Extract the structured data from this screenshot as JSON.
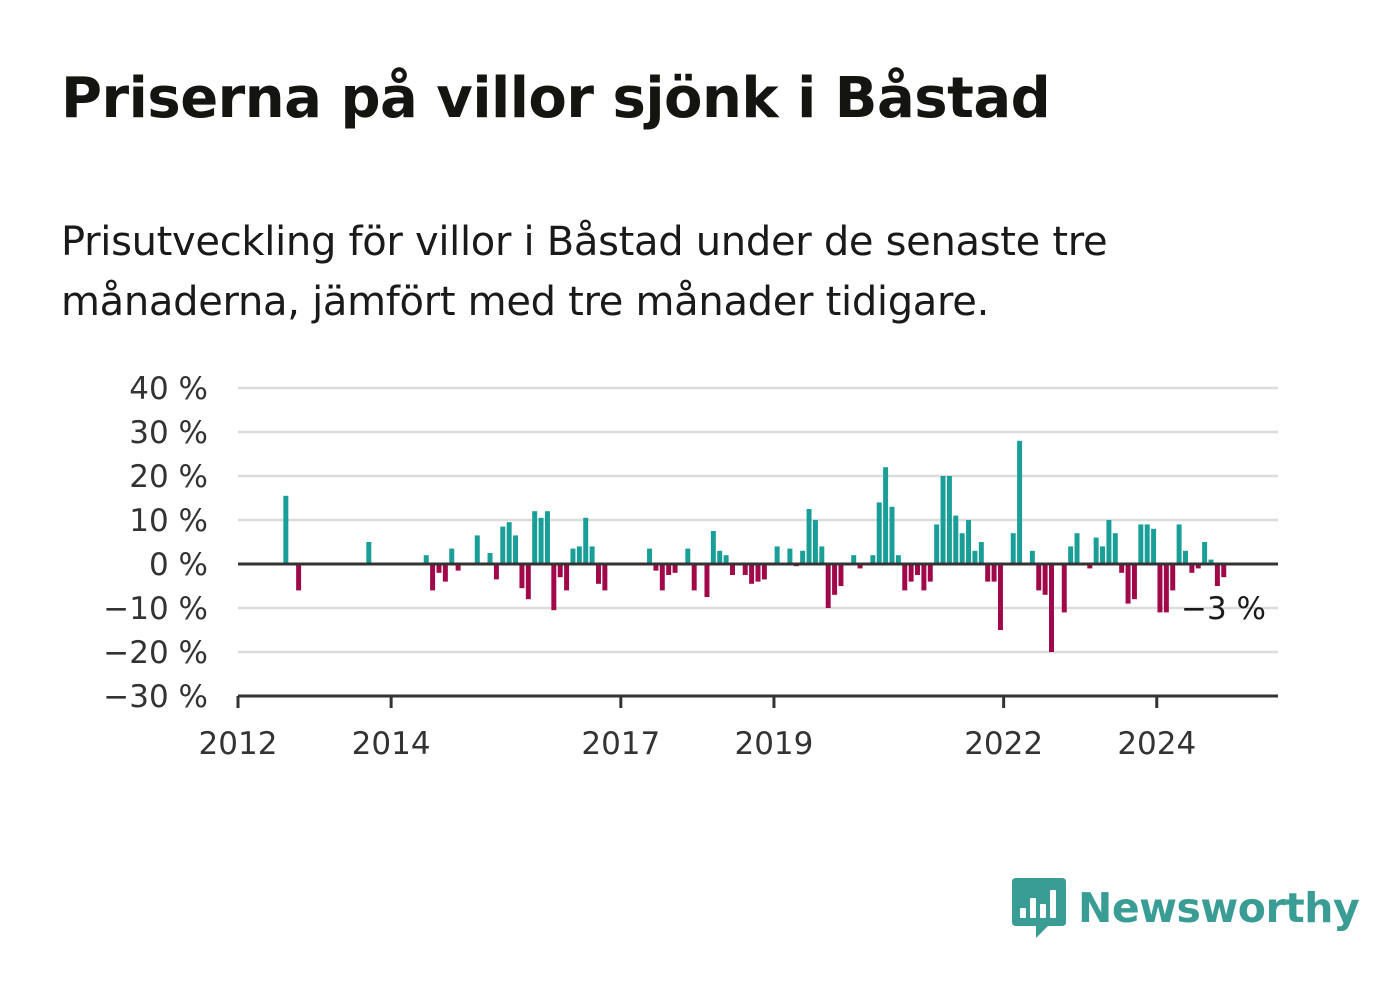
{
  "title": "Priserna på villor sjönk i Båstad",
  "subtitle": "Prisutveckling för villor i Båstad under de senaste tre månaderna, jämfört med tre månader tidigare.",
  "logo": {
    "name": "Newsworthy",
    "icon": "newsworthy-bar-chart-icon"
  },
  "colors": {
    "positive": "#1a9e98",
    "negative": "#a0084a",
    "grid": "#dcdcdc",
    "axis": "#333333"
  },
  "chart_data": {
    "type": "bar",
    "title": "",
    "xlabel": "",
    "ylabel": "",
    "ylim": [
      -30,
      40
    ],
    "yticks": [
      40,
      30,
      20,
      10,
      0,
      -10,
      -20,
      -30
    ],
    "ytick_labels": [
      "40 %",
      "30 %",
      "20 %",
      "10 %",
      "0 %",
      "−10 %",
      "−20 %",
      "−30 %"
    ],
    "xticks": [
      "2012",
      "2014",
      "2017",
      "2019",
      "2022",
      "2024"
    ],
    "grid": true,
    "last_value_label": "−3 %",
    "x_start": "2012-01",
    "x_end": "2025-08",
    "bars": [
      {
        "x": "2012-08",
        "value": 15.5
      },
      {
        "x": "2012-10",
        "value": -6
      },
      {
        "x": "2013-09",
        "value": 5
      },
      {
        "x": "2014-06",
        "value": 2
      },
      {
        "x": "2014-07",
        "value": -6
      },
      {
        "x": "2014-08",
        "value": -2
      },
      {
        "x": "2014-09",
        "value": -4
      },
      {
        "x": "2014-10",
        "value": 3.5
      },
      {
        "x": "2014-11",
        "value": -1.5
      },
      {
        "x": "2015-02",
        "value": 6.5
      },
      {
        "x": "2015-04",
        "value": 2.5
      },
      {
        "x": "2015-05",
        "value": -3.5
      },
      {
        "x": "2015-06",
        "value": 8.5
      },
      {
        "x": "2015-07",
        "value": 9.5
      },
      {
        "x": "2015-08",
        "value": 6.5
      },
      {
        "x": "2015-09",
        "value": -5.5
      },
      {
        "x": "2015-10",
        "value": -8
      },
      {
        "x": "2015-11",
        "value": 12
      },
      {
        "x": "2015-12",
        "value": 10.5
      },
      {
        "x": "2016-01",
        "value": 12
      },
      {
        "x": "2016-02",
        "value": -10.5
      },
      {
        "x": "2016-03",
        "value": -3
      },
      {
        "x": "2016-04",
        "value": -6
      },
      {
        "x": "2016-05",
        "value": 3.5
      },
      {
        "x": "2016-06",
        "value": 4
      },
      {
        "x": "2016-07",
        "value": 10.5
      },
      {
        "x": "2016-08",
        "value": 4
      },
      {
        "x": "2016-09",
        "value": -4.5
      },
      {
        "x": "2016-10",
        "value": -6
      },
      {
        "x": "2017-05",
        "value": 3.5
      },
      {
        "x": "2017-06",
        "value": -1.5
      },
      {
        "x": "2017-07",
        "value": -6
      },
      {
        "x": "2017-08",
        "value": -2.5
      },
      {
        "x": "2017-09",
        "value": -2
      },
      {
        "x": "2017-11",
        "value": 3.5
      },
      {
        "x": "2017-12",
        "value": -6
      },
      {
        "x": "2018-02",
        "value": -7.5
      },
      {
        "x": "2018-03",
        "value": 7.5
      },
      {
        "x": "2018-04",
        "value": 3
      },
      {
        "x": "2018-05",
        "value": 2
      },
      {
        "x": "2018-06",
        "value": -2.5
      },
      {
        "x": "2018-08",
        "value": -2.5
      },
      {
        "x": "2018-09",
        "value": -4.5
      },
      {
        "x": "2018-10",
        "value": -4
      },
      {
        "x": "2018-11",
        "value": -3.5
      },
      {
        "x": "2019-01",
        "value": 4
      },
      {
        "x": "2019-03",
        "value": 3.5
      },
      {
        "x": "2019-04",
        "value": -0.5
      },
      {
        "x": "2019-05",
        "value": 3
      },
      {
        "x": "2019-06",
        "value": 12.5
      },
      {
        "x": "2019-07",
        "value": 10
      },
      {
        "x": "2019-08",
        "value": 4
      },
      {
        "x": "2019-09",
        "value": -10
      },
      {
        "x": "2019-10",
        "value": -7
      },
      {
        "x": "2019-11",
        "value": -5
      },
      {
        "x": "2020-01",
        "value": 2
      },
      {
        "x": "2020-02",
        "value": -1
      },
      {
        "x": "2020-04",
        "value": 2
      },
      {
        "x": "2020-05",
        "value": 14
      },
      {
        "x": "2020-06",
        "value": 22
      },
      {
        "x": "2020-07",
        "value": 13
      },
      {
        "x": "2020-08",
        "value": 2
      },
      {
        "x": "2020-09",
        "value": -6
      },
      {
        "x": "2020-10",
        "value": -4
      },
      {
        "x": "2020-11",
        "value": -2.5
      },
      {
        "x": "2020-12",
        "value": -6
      },
      {
        "x": "2021-01",
        "value": -4
      },
      {
        "x": "2021-02",
        "value": 9
      },
      {
        "x": "2021-03",
        "value": 20
      },
      {
        "x": "2021-04",
        "value": 20
      },
      {
        "x": "2021-05",
        "value": 11
      },
      {
        "x": "2021-06",
        "value": 7
      },
      {
        "x": "2021-07",
        "value": 10
      },
      {
        "x": "2021-08",
        "value": 3
      },
      {
        "x": "2021-09",
        "value": 5
      },
      {
        "x": "2021-10",
        "value": -4
      },
      {
        "x": "2021-11",
        "value": -4
      },
      {
        "x": "2021-12",
        "value": -15
      },
      {
        "x": "2022-02",
        "value": 7
      },
      {
        "x": "2022-03",
        "value": 28
      },
      {
        "x": "2022-05",
        "value": 3
      },
      {
        "x": "2022-06",
        "value": -6
      },
      {
        "x": "2022-07",
        "value": -7
      },
      {
        "x": "2022-08",
        "value": -20
      },
      {
        "x": "2022-10",
        "value": -11
      },
      {
        "x": "2022-11",
        "value": 4
      },
      {
        "x": "2022-12",
        "value": 7
      },
      {
        "x": "2023-02",
        "value": -1
      },
      {
        "x": "2023-03",
        "value": 6
      },
      {
        "x": "2023-04",
        "value": 4
      },
      {
        "x": "2023-05",
        "value": 10
      },
      {
        "x": "2023-06",
        "value": 7
      },
      {
        "x": "2023-07",
        "value": -2
      },
      {
        "x": "2023-08",
        "value": -9
      },
      {
        "x": "2023-09",
        "value": -8
      },
      {
        "x": "2023-10",
        "value": 9
      },
      {
        "x": "2023-11",
        "value": 9
      },
      {
        "x": "2023-12",
        "value": 8
      },
      {
        "x": "2024-01",
        "value": -11
      },
      {
        "x": "2024-02",
        "value": -11
      },
      {
        "x": "2024-03",
        "value": -6
      },
      {
        "x": "2024-04",
        "value": 9
      },
      {
        "x": "2024-05",
        "value": 3
      },
      {
        "x": "2024-06",
        "value": -2
      },
      {
        "x": "2024-07",
        "value": -1
      },
      {
        "x": "2024-08",
        "value": 5
      },
      {
        "x": "2024-09",
        "value": 1
      },
      {
        "x": "2024-10",
        "value": -5
      },
      {
        "x": "2024-11",
        "value": -3
      }
    ]
  }
}
